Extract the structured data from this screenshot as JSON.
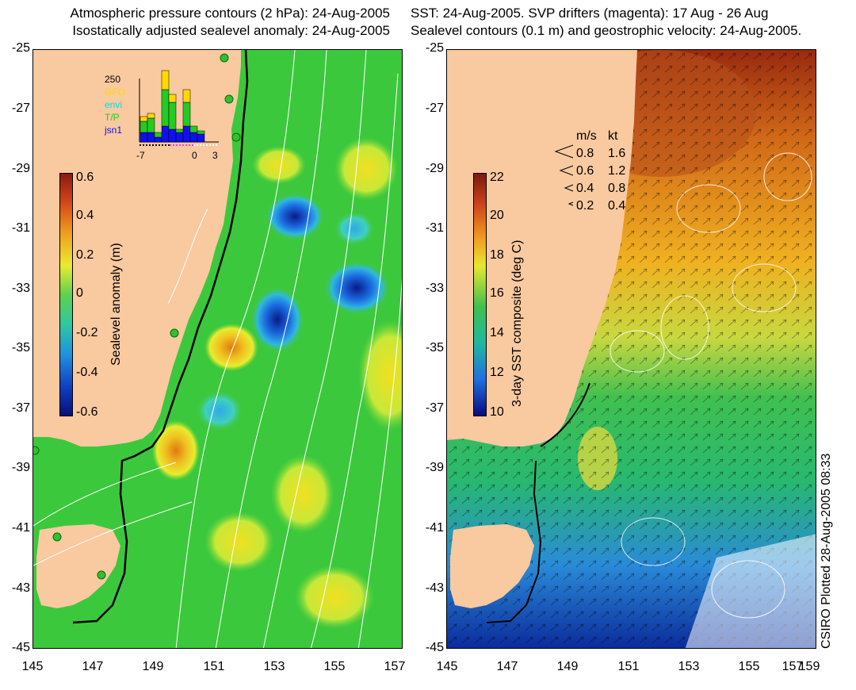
{
  "left_panel": {
    "title_line1": "Atmospheric pressure contours (2 hPa): 24-Aug-2005",
    "title_line2": "Isostatically adjusted sealevel anomaly: 24-Aug-2005",
    "colorbar": {
      "label": "Sealevel anomaly (m)",
      "ticks": [
        "0.6",
        "0.4",
        "0.2",
        "0",
        "-0.2",
        "-0.4",
        "-0.6"
      ]
    },
    "inset": {
      "y_label": "250",
      "series": [
        "GFO",
        "envi",
        "T/P",
        "jsn1"
      ],
      "series_colors": [
        "#ffd800",
        "#00e0e0",
        "#22cc22",
        "#1010ee"
      ],
      "x_ticks": [
        "-7",
        "0",
        "3"
      ]
    }
  },
  "right_panel": {
    "title_line1": "SST: 24-Aug-2005. SVP drifters (magenta): 17 Aug - 26 Aug",
    "title_line2": "Sealevel contours (0.1 m) and geostrophic velocity: 24-Aug-2005.",
    "colorbar": {
      "label": "3-day SST composite (deg C)",
      "ticks": [
        "22",
        "20",
        "18",
        "16",
        "14",
        "12",
        "10"
      ]
    },
    "velocity_legend": {
      "header_ms": "m/s",
      "header_kt": "kt",
      "rows": [
        {
          "ms": "0.8",
          "kt": "1.6"
        },
        {
          "ms": "0.6",
          "kt": "1.2"
        },
        {
          "ms": "0.4",
          "kt": "0.8"
        },
        {
          "ms": "0.2",
          "kt": "0.4"
        }
      ]
    }
  },
  "axes": {
    "y_ticks": [
      "-25",
      "-27",
      "-29",
      "-31",
      "-33",
      "-35",
      "-37",
      "-39",
      "-41",
      "-43",
      "-45"
    ],
    "x_ticks": [
      "145",
      "147",
      "149",
      "151",
      "153",
      "155",
      "157",
      "159"
    ]
  },
  "credit": "CSIRO Plotted 28-Aug-2005 08:33",
  "colors": {
    "land": "#f9c9a0",
    "ocean_green": "#3cc83c",
    "warm": "#e8a010",
    "cold": "#1040c0"
  }
}
